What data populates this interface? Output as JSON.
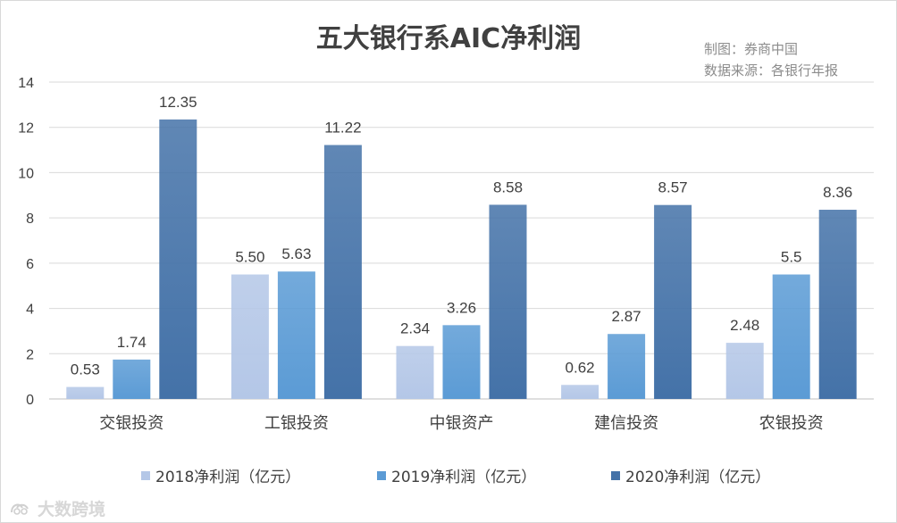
{
  "title": "五大银行系AIC净利润",
  "credits": [
    "制图：券商中国",
    "数据来源：各银行年报"
  ],
  "watermark": "大数跨境",
  "colors": {
    "s2018": "#b4c7e7",
    "s2019": "#5b9bd5",
    "s2020": "#4472a8",
    "grid": "#d9d9d9",
    "axis": "#bfbfbf",
    "text": "#404040"
  },
  "chart_data": {
    "type": "bar",
    "categories": [
      "交银投资",
      "工银投资",
      "中银资产",
      "建信投资",
      "农银投资"
    ],
    "series": [
      {
        "name": "2018净利润（亿元）",
        "values": [
          0.53,
          5.5,
          2.34,
          0.62,
          2.48
        ],
        "labels": [
          "0.53",
          "5.50",
          "2.34",
          "0.62",
          "2.48"
        ],
        "color": "#b4c7e7"
      },
      {
        "name": "2019净利润（亿元）",
        "values": [
          1.74,
          5.63,
          3.26,
          2.87,
          5.5
        ],
        "labels": [
          "1.74",
          "5.63",
          "3.26",
          "2.87",
          "5.5"
        ],
        "color": "#5b9bd5"
      },
      {
        "name": "2020净利润（亿元）",
        "values": [
          12.35,
          11.22,
          8.58,
          8.57,
          8.36
        ],
        "labels": [
          "12.35",
          "11.22",
          "8.58",
          "8.57",
          "8.36"
        ],
        "color": "#4472a8"
      }
    ],
    "ylim": [
      0,
      14
    ],
    "yticks": [
      0,
      2,
      4,
      6,
      8,
      10,
      12,
      14
    ],
    "grid": true,
    "legend": "bottom"
  }
}
